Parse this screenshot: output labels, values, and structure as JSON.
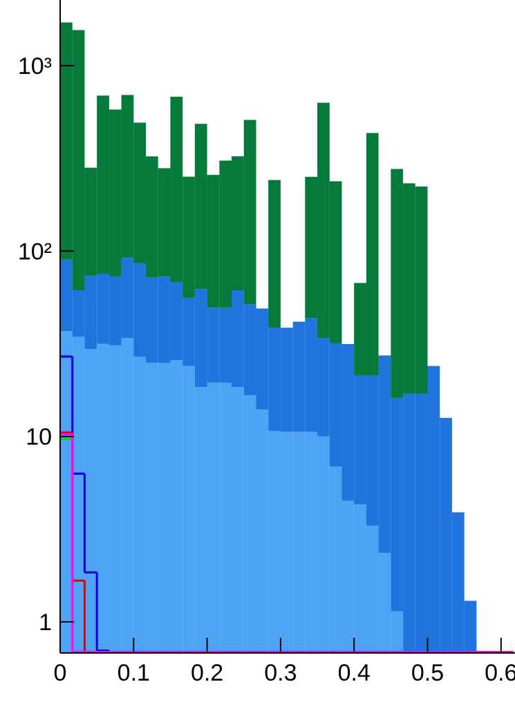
{
  "chart_data": {
    "type": "stacked-histogram",
    "log_y": true,
    "bins": [
      0,
      0.0167,
      0.0333,
      0.05,
      0.0667,
      0.0833,
      0.1,
      0.1167,
      0.1333,
      0.15,
      0.1667,
      0.1833,
      0.2,
      0.2167,
      0.2333,
      0.25,
      0.2667,
      0.2833,
      0.3,
      0.3167,
      0.3333,
      0.35,
      0.3667,
      0.3833,
      0.4,
      0.4167,
      0.4333,
      0.45,
      0.4667,
      0.4833,
      0.5,
      0.5167,
      0.5333,
      0.55,
      0.5667,
      0.5833,
      0.6,
      0.6167
    ],
    "series": [
      {
        "color": "#4fa3f5",
        "style": "filled",
        "values": [
          37,
          34.5,
          29.6,
          31.6,
          31,
          34,
          26.9,
          25,
          24.9,
          25.8,
          24,
          18.5,
          19.5,
          19.5,
          18.5,
          16.7,
          14,
          10.7,
          10.6,
          10.6,
          10.6,
          10,
          6.9,
          4.5,
          4.3,
          3.3,
          2.36,
          1.14,
          0,
          0,
          0,
          0,
          0,
          0,
          0,
          0,
          0
        ]
      },
      {
        "color": "#2174dc",
        "style": "filled",
        "values": [
          53,
          27,
          44,
          44,
          42,
          58,
          59,
          47,
          48,
          42,
          32,
          44,
          30,
          30,
          43,
          35,
          35,
          28,
          28,
          31,
          33,
          24,
          25,
          27,
          17,
          18,
          25,
          15,
          17,
          17,
          24,
          12.6,
          3.9,
          1.3,
          0,
          0,
          0
        ]
      },
      {
        "color": "#067a3a",
        "style": "filled",
        "values": [
          1620,
          1494,
          208,
          614,
          507,
          603,
          407,
          252,
          207,
          612,
          196,
          423,
          208,
          258,
          263,
          458,
          0,
          203,
          0,
          0,
          208,
          597,
          206,
          0,
          46,
          412,
          0,
          261,
          215,
          206,
          0,
          0,
          0,
          0,
          0,
          0,
          0
        ]
      },
      {
        "color": "#0000e0",
        "style": "line",
        "values": [
          27,
          6.3,
          1.85,
          0.7,
          0,
          0,
          0,
          0,
          0,
          0,
          0,
          0,
          0,
          0,
          0,
          0,
          0,
          0,
          0,
          0,
          0,
          0,
          0,
          0,
          0,
          0,
          0,
          0,
          0,
          0,
          0,
          0,
          0,
          0,
          0,
          0,
          0
        ]
      },
      {
        "color": "#e00000",
        "style": "line",
        "values": [
          10.5,
          1.67,
          0,
          0,
          0,
          0,
          0,
          0,
          0,
          0,
          0,
          0,
          0,
          0,
          0,
          0,
          0,
          0,
          0,
          0,
          0,
          0,
          0,
          0,
          0,
          0,
          0,
          0,
          0,
          0,
          0,
          0,
          0,
          0,
          0,
          0,
          0
        ]
      },
      {
        "color": "#00dd00",
        "style": "line",
        "values": [
          9.7,
          0,
          0,
          0,
          0,
          0,
          0,
          0,
          0,
          0,
          0,
          0,
          0,
          0,
          0,
          0,
          0,
          0,
          0,
          0,
          0,
          0,
          0,
          0,
          0,
          0,
          0,
          0,
          0,
          0,
          0,
          0,
          0,
          0,
          0,
          0,
          0
        ]
      },
      {
        "color": "#ff00ff",
        "style": "line",
        "values": [
          10.3,
          0,
          0,
          0,
          0,
          0,
          0,
          0,
          0,
          0,
          0,
          0,
          0,
          0,
          0,
          0,
          0,
          0,
          0,
          0,
          0,
          0,
          0,
          0,
          0,
          0,
          0,
          0,
          0,
          0,
          0,
          0,
          0,
          0,
          0,
          0,
          0
        ]
      }
    ],
    "xlim": [
      0,
      0.619
    ],
    "xticks": [
      0,
      0.1,
      0.2,
      0.3,
      0.4,
      0.5,
      0.6
    ],
    "ylim": [
      0.68,
      2260
    ],
    "yticks": [
      1,
      10,
      {
        "value": 100,
        "label": "10²"
      },
      {
        "value": 1000,
        "label": "10³"
      }
    ]
  }
}
